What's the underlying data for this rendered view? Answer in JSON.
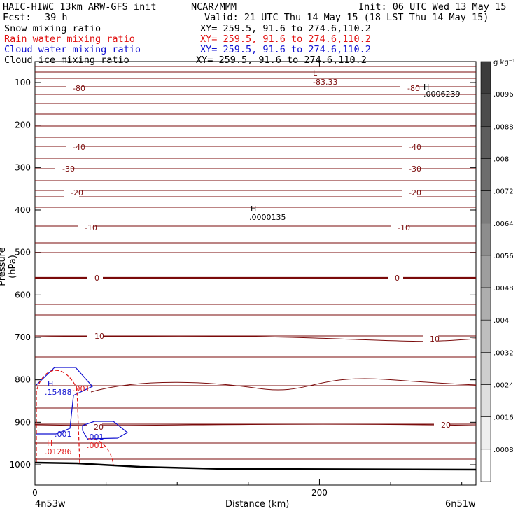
{
  "header": {
    "model_line": "HAIC-HIWC 13km ARW-GFS init",
    "org": "NCAR/MMM",
    "init": "Init: 06 UTC Wed 13 May 15",
    "fcst_label": "Fcst:",
    "fcst_value": "39 h",
    "valid": "Valid: 21 UTC Thu 14 May 15 (18 LST Thu 14 May 15)",
    "fields": [
      {
        "name": "Snow mixing ratio",
        "xy": "XY= 259.5, 91.6 to 274.6,110.2",
        "color": "#000000"
      },
      {
        "name": "Rain water mixing ratio",
        "xy": "XY= 259.5, 91.6 to 274.6,110.2",
        "color": "#e01010"
      },
      {
        "name": "Cloud water mixing ratio",
        "xy": "XY= 259.5, 91.6 to 274.6,110.2",
        "color": "#1010d0"
      },
      {
        "name": "Cloud ice mixing ratio",
        "xy": "XY= 259.5, 91.6 to 274.6,110.2",
        "color": "#000000"
      }
    ]
  },
  "chart_data": {
    "type": "line",
    "title": "",
    "xlabel": "Distance (km)",
    "ylabel": "Pressure (hPa)",
    "xlim": [
      0,
      310
    ],
    "ylim": [
      1050,
      50
    ],
    "x_ticks": [
      0,
      200
    ],
    "y_ticks": [
      100,
      200,
      300,
      400,
      500,
      600,
      700,
      800,
      900,
      1000
    ],
    "x_endpoints": {
      "left": "4n53w",
      "right": "6n51w"
    },
    "temperature_contour_labels": [
      "-80",
      "-80",
      "-40",
      "-40",
      "-30",
      "-30",
      "-20",
      "-20",
      "-10",
      "-10",
      "0",
      "0",
      "10",
      "10",
      "20",
      "20"
    ],
    "extrema": [
      {
        "kind": "L",
        "value": "-83.33",
        "x": 200,
        "p": 110
      },
      {
        "kind": "H",
        "value": ".0006239",
        "x": 278,
        "p": 128
      },
      {
        "kind": "H",
        "value": ".0000135",
        "x": 155,
        "p": 408
      },
      {
        "kind": "H",
        "value": ".15488",
        "x": 10,
        "p": 830,
        "color": "#1010d0"
      },
      {
        "kind": "H",
        "value": ".01286",
        "x": 10,
        "p": 975,
        "color": "#e01010"
      }
    ],
    "cloud_water_labels": [
      ".001",
      ".001"
    ],
    "rain_labels": [
      ".001",
      ".001"
    ],
    "colorbar": {
      "units": "g kg⁻¹",
      "labels": [
        ".0096",
        ".0088",
        ".008",
        ".0072",
        ".0064",
        ".0056",
        ".0048",
        ".004",
        ".0032",
        ".0024",
        ".0016",
        ".0008"
      ]
    },
    "colors": {
      "temperature": "#7a0a0a",
      "cloud_water": "#1010d0",
      "rain": "#e01010",
      "ground": "#000000"
    }
  }
}
